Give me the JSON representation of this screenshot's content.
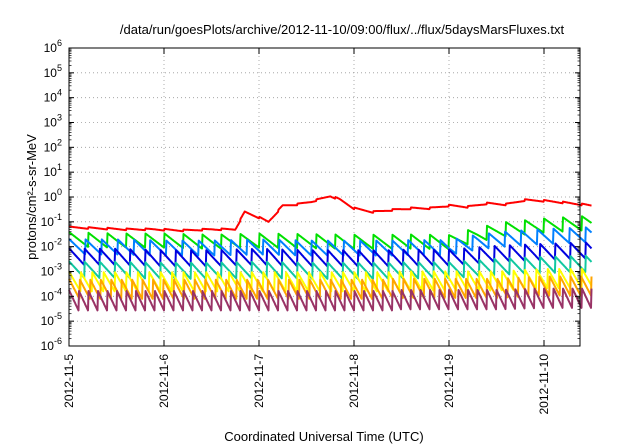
{
  "chart_data": {
    "type": "line",
    "title": "/data/run/goesPlots/archive/2012-11-10/09:00/flux/../flux/5daysMarsFluxes.txt",
    "xlabel": "Coordinated Universal Time (UTC)",
    "ylabel": "protons/cm²-s-sr-MeV",
    "yscale": "log",
    "ylim_exponents": [
      -6,
      6
    ],
    "y_tick_labels": [
      "10^-6",
      "10^-5",
      "10^-4",
      "10^-3",
      "10^-2",
      "10^-1",
      "10^0",
      "10^1",
      "10^2",
      "10^3",
      "10^4",
      "10^5",
      "10^6"
    ],
    "x_tick_labels": [
      "2012-11-5",
      "2012-11-6",
      "2012-11-7",
      "2012-11-8",
      "2012-11-9",
      "2012-11-10"
    ],
    "xlim_days": [
      5.0,
      10.5
    ],
    "grid": true,
    "series": [
      {
        "color": "#ff0000",
        "x": [
          5.0,
          5.3,
          5.6,
          5.9,
          6.2,
          6.5,
          6.75,
          6.85,
          7.0,
          7.1,
          7.25,
          7.4,
          7.55,
          7.75,
          7.85,
          8.0,
          8.2,
          8.4,
          8.6,
          8.8,
          9.0,
          9.2,
          9.4,
          9.6,
          9.8,
          10.0,
          10.2,
          10.4,
          10.5
        ],
        "y": [
          0.06,
          0.055,
          0.05,
          0.05,
          0.045,
          0.05,
          0.05,
          0.25,
          0.15,
          0.1,
          0.45,
          0.5,
          0.65,
          1.1,
          0.8,
          0.35,
          0.25,
          0.3,
          0.35,
          0.35,
          0.45,
          0.4,
          0.55,
          0.5,
          0.75,
          0.7,
          0.6,
          0.5,
          0.45
        ]
      },
      {
        "color": "#00e000",
        "x": [
          5.0,
          5.5,
          6.0,
          6.5,
          7.0,
          7.5,
          8.0,
          8.5,
          9.0,
          9.3,
          9.6,
          10.0,
          10.5
        ],
        "y": [
          0.02,
          0.018,
          0.018,
          0.016,
          0.018,
          0.017,
          0.016,
          0.016,
          0.015,
          0.03,
          0.05,
          0.07,
          0.09
        ]
      },
      {
        "color": "#0080ff",
        "x": [
          5.0,
          5.5,
          6.0,
          6.5,
          7.0,
          7.5,
          8.0,
          8.5,
          9.0,
          9.3,
          9.6,
          10.0,
          10.5
        ],
        "y": [
          0.01,
          0.01,
          0.009,
          0.009,
          0.01,
          0.009,
          0.009,
          0.009,
          0.009,
          0.015,
          0.02,
          0.025,
          0.03
        ]
      },
      {
        "color": "#0000e0",
        "x": [
          5.0,
          5.5,
          6.0,
          6.5,
          7.0,
          7.5,
          8.0,
          8.5,
          9.0,
          9.5,
          10.0,
          10.5
        ],
        "y": [
          0.004,
          0.004,
          0.0035,
          0.0035,
          0.004,
          0.0035,
          0.0035,
          0.0035,
          0.0035,
          0.005,
          0.006,
          0.007
        ]
      },
      {
        "color": "#10c8a0",
        "x": [
          5.0,
          5.5,
          6.0,
          6.5,
          7.0,
          7.5,
          8.0,
          8.5,
          9.0,
          9.5,
          10.0,
          10.5
        ],
        "y": [
          0.0012,
          0.0012,
          0.0011,
          0.0011,
          0.0012,
          0.0011,
          0.0011,
          0.0011,
          0.0011,
          0.0015,
          0.0018,
          0.002
        ]
      },
      {
        "color": "#ffff00",
        "x": [
          5.0,
          5.5,
          6.0,
          6.5,
          7.0,
          7.5,
          8.0,
          8.5,
          9.0,
          9.5,
          10.0,
          10.5
        ],
        "y": [
          0.0004,
          0.0004,
          0.0004,
          0.0004,
          0.0004,
          0.0004,
          0.0004,
          0.0004,
          0.0004,
          0.0004,
          0.0005,
          0.0005
        ]
      },
      {
        "color": "#ffa500",
        "x": [
          5.0,
          5.5,
          6.0,
          6.5,
          7.0,
          7.5,
          8.0,
          8.5,
          9.0,
          9.5,
          10.0,
          10.5
        ],
        "y": [
          0.0002,
          0.0002,
          0.0002,
          0.0002,
          0.0002,
          0.0002,
          0.0002,
          0.0002,
          0.0002,
          0.0002,
          0.00025,
          0.00025
        ]
      },
      {
        "color": "#993366",
        "x": [
          5.0,
          5.5,
          6.0,
          6.5,
          7.0,
          7.5,
          8.0,
          8.5,
          9.0,
          9.5,
          10.0,
          10.5
        ],
        "y": [
          7e-05,
          7e-05,
          7e-05,
          7e-05,
          7e-05,
          7e-05,
          7e-05,
          7e-05,
          7e-05,
          7e-05,
          8e-05,
          8e-05
        ]
      }
    ]
  }
}
